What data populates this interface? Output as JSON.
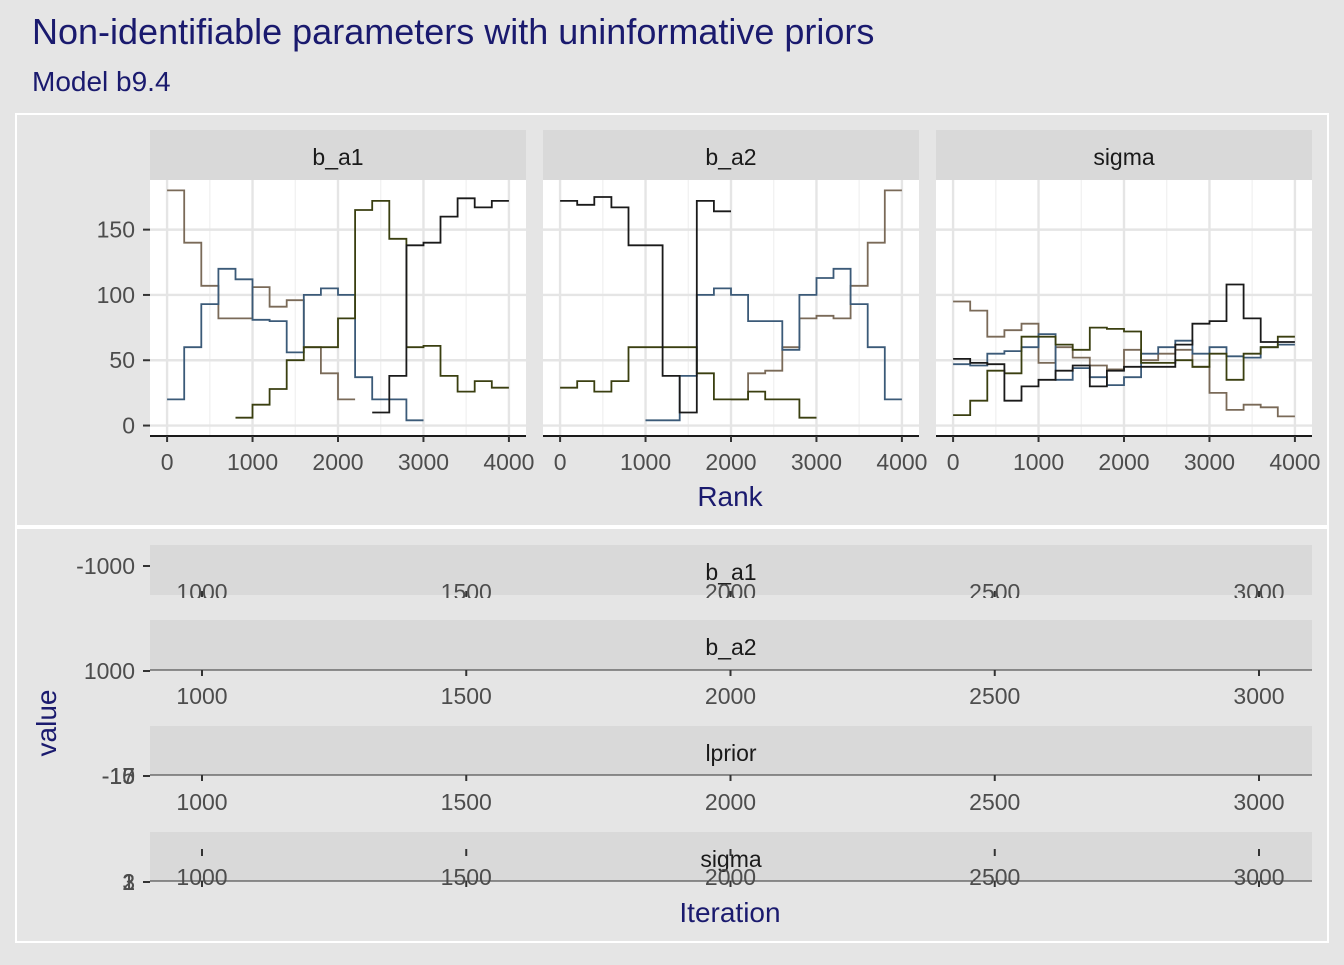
{
  "title": "Non-identifiable parameters with uninformative priors",
  "subtitle": "Model b9.4",
  "colors": {
    "background": "#e5e5e5",
    "panel": "#ffffff",
    "strip": "#d9d9d9",
    "grid": "#e5e5e5",
    "title_text": "#1a1a6e",
    "axis_text": "#4d4d4d",
    "chains": [
      "#7a6a58",
      "#3b5a78",
      "#3a3f10",
      "#1a1a1a"
    ]
  },
  "chart_data": [
    {
      "type": "line",
      "step": true,
      "xlabel": "Rank",
      "ylabel": "",
      "xlim": [
        -200,
        4200
      ],
      "ylim": [
        -8,
        188
      ],
      "xticks": [
        0,
        1000,
        2000,
        3000,
        4000
      ],
      "yticks": [
        0,
        50,
        100,
        150
      ],
      "bin_edges": [
        0,
        200,
        400,
        600,
        800,
        1000,
        1200,
        1400,
        1600,
        1800,
        2000,
        2200,
        2400,
        2600,
        2800,
        3000,
        3200,
        3400,
        3600,
        3800,
        4000
      ],
      "grid": true,
      "panels": [
        {
          "name": "b_a1",
          "series": [
            {
              "values": [
                180,
                140,
                107,
                82,
                82,
                106,
                91,
                96,
                60,
                40,
                20,
                null,
                null,
                null,
                null,
                null,
                null,
                null,
                null,
                null
              ]
            },
            {
              "values": [
                20,
                60,
                93,
                120,
                112,
                81,
                80,
                56,
                100,
                105,
                100,
                37,
                20,
                20,
                4,
                null,
                null,
                null,
                null,
                null
              ]
            },
            {
              "values": [
                null,
                null,
                null,
                null,
                6,
                16,
                28,
                50,
                60,
                60,
                82,
                165,
                172,
                143,
                60,
                61,
                38,
                26,
                34,
                29
              ]
            },
            {
              "values": [
                null,
                null,
                null,
                null,
                null,
                null,
                null,
                null,
                null,
                null,
                null,
                null,
                10,
                38,
                138,
                140,
                160,
                174,
                167,
                172
              ]
            }
          ]
        },
        {
          "name": "b_a2",
          "series": [
            {
              "values": [
                null,
                null,
                null,
                null,
                null,
                null,
                null,
                null,
                null,
                null,
                20,
                40,
                42,
                60,
                82,
                84,
                82,
                107,
                140,
                180
              ]
            },
            {
              "values": [
                null,
                null,
                null,
                null,
                null,
                4,
                4,
                38,
                100,
                105,
                100,
                80,
                80,
                58,
                100,
                113,
                120,
                93,
                60,
                20
              ]
            },
            {
              "values": [
                29,
                34,
                26,
                34,
                60,
                60,
                60,
                60,
                40,
                20,
                20,
                26,
                20,
                20,
                6,
                null,
                null,
                null,
                null,
                null
              ]
            },
            {
              "values": [
                172,
                169,
                175,
                167,
                138,
                138,
                38,
                10,
                172,
                164,
                null,
                null,
                null,
                null,
                null,
                null,
                null,
                null,
                null,
                null
              ]
            }
          ]
        },
        {
          "name": "sigma",
          "series": [
            {
              "values": [
                95,
                88,
                68,
                73,
                78,
                48,
                60,
                52,
                46,
                43,
                58,
                50,
                55,
                58,
                45,
                25,
                12,
                16,
                14,
                7
              ]
            },
            {
              "values": [
                47,
                46,
                55,
                57,
                60,
                70,
                35,
                44,
                37,
                31,
                37,
                55,
                60,
                65,
                55,
                60,
                53,
                52,
                60,
                62
              ]
            },
            {
              "values": [
                8,
                19,
                42,
                40,
                68,
                68,
                62,
                58,
                75,
                74,
                72,
                48,
                48,
                50,
                45,
                55,
                35,
                55,
                60,
                68
              ]
            },
            {
              "values": [
                51,
                48,
                47,
                19,
                30,
                35,
                42,
                46,
                30,
                42,
                45,
                45,
                45,
                62,
                78,
                80,
                108,
                82,
                64,
                64
              ]
            }
          ]
        }
      ]
    },
    {
      "type": "line",
      "xlabel": "Iteration",
      "ylabel": "value",
      "xlim": [
        900,
        3100
      ],
      "xticks": [
        1000,
        1500,
        2000,
        2500,
        3000
      ],
      "yaxis_labels": [
        {
          "panel": "b_a1",
          "ticks": [
            "-1000"
          ]
        },
        {
          "panel": "b_a2",
          "ticks": [
            "1000"
          ]
        },
        {
          "panel": "lprior",
          "ticks": [
            "-10",
            "-15",
            "-17"
          ]
        },
        {
          "panel": "sigma",
          "ticks": [
            "1",
            "2",
            "3"
          ]
        }
      ],
      "panels": [
        {
          "name": "b_a1"
        },
        {
          "name": "b_a2"
        },
        {
          "name": "lprior"
        },
        {
          "name": "sigma"
        }
      ]
    }
  ]
}
